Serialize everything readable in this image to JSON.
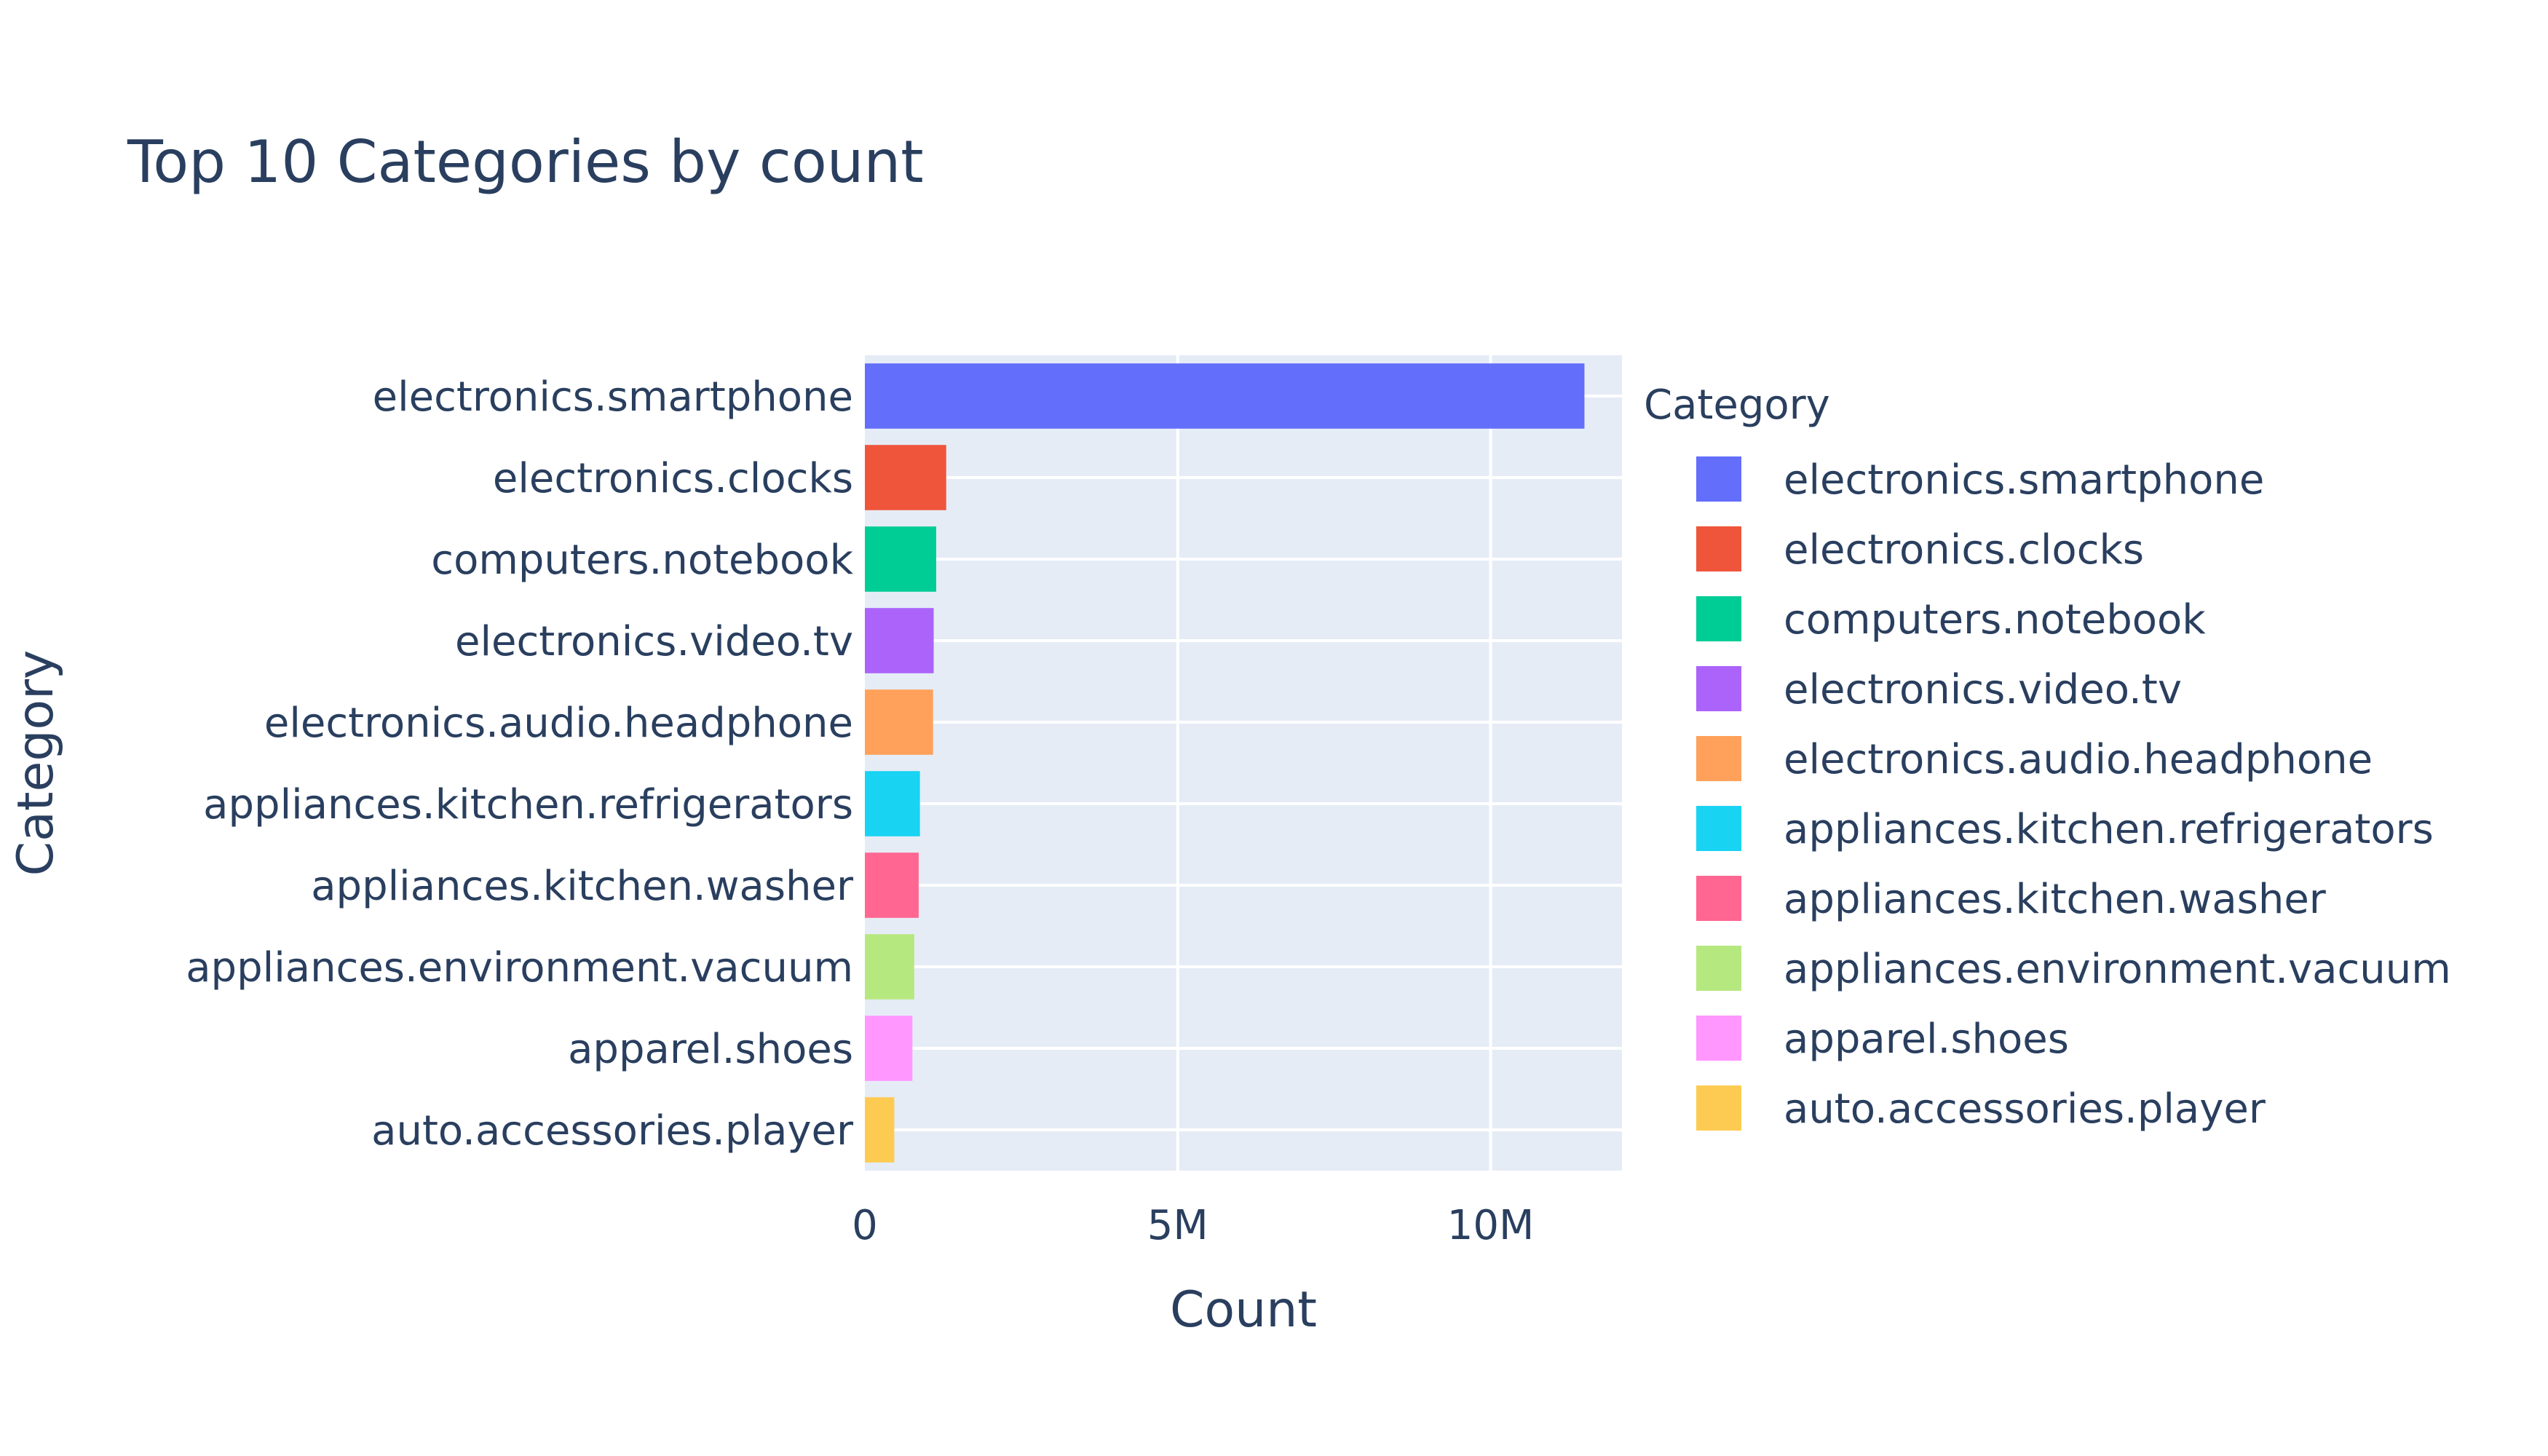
{
  "chart_data": {
    "type": "bar",
    "orientation": "horizontal",
    "title": "Top 10 Categories by count",
    "xlabel": "Count",
    "ylabel": "Category",
    "xlim": [
      0,
      12100000
    ],
    "x_ticks": [
      {
        "value": 0,
        "label": "0"
      },
      {
        "value": 5000000,
        "label": "5M"
      },
      {
        "value": 10000000,
        "label": "10M"
      }
    ],
    "grid": true,
    "legend_title": "Category",
    "legend_position": "right",
    "categories": [
      "electronics.smartphone",
      "electronics.clocks",
      "computers.notebook",
      "electronics.video.tv",
      "electronics.audio.headphone",
      "appliances.kitchen.refrigerators",
      "appliances.kitchen.washer",
      "appliances.environment.vacuum",
      "apparel.shoes",
      "auto.accessories.player"
    ],
    "values": [
      11500000,
      1300000,
      1140000,
      1100000,
      1090000,
      880000,
      860000,
      790000,
      760000,
      470000
    ],
    "colors": [
      "#636efa",
      "#EF553B",
      "#00cc96",
      "#ab63fa",
      "#FFA15A",
      "#19d3f3",
      "#FF6692",
      "#B6E880",
      "#FF97FF",
      "#FECB52"
    ],
    "plot_background": "#e5ecf6",
    "text_color": "#2a3f5f"
  }
}
